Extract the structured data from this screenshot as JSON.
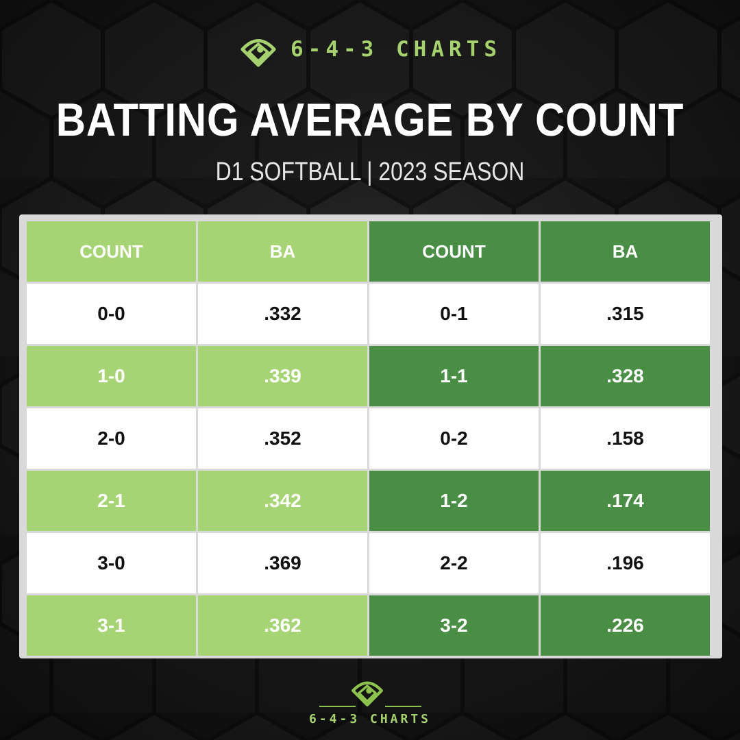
{
  "brand": {
    "name": "6-4-3 CHARTS",
    "logo_icon": "baseball-diamond-icon",
    "accent_color": "#a5d16f"
  },
  "title": "BATTING AVERAGE BY COUNT",
  "subtitle": "D1 SOFTBALL | 2023 SEASON",
  "colors": {
    "light_green": "#a6d474",
    "dark_green": "#4a8e46",
    "background": "#1c1c1c"
  },
  "chart_data": {
    "type": "table",
    "columns": [
      "COUNT",
      "BA",
      "COUNT",
      "BA"
    ],
    "rows": [
      [
        "0-0",
        ".332",
        "0-1",
        ".315"
      ],
      [
        "1-0",
        ".339",
        "1-1",
        ".328"
      ],
      [
        "2-0",
        ".352",
        "0-2",
        ".158"
      ],
      [
        "2-1",
        ".342",
        "1-2",
        ".174"
      ],
      [
        "3-0",
        ".369",
        "2-2",
        ".196"
      ],
      [
        "3-1",
        ".362",
        "3-2",
        ".226"
      ]
    ]
  }
}
